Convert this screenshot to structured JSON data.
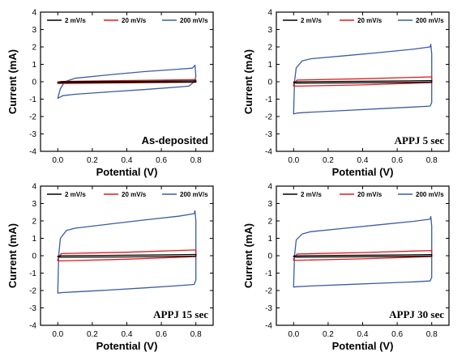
{
  "chart_data": [
    {
      "type": "line",
      "annotation": "As-deposited",
      "annotation_style": "sans",
      "xlabel": "Potential (V)",
      "ylabel": "Current (mA)",
      "xlim": [
        -0.1,
        0.9
      ],
      "ylim": [
        -4,
        4
      ],
      "xticks": [
        "0.0",
        "0.2",
        "0.4",
        "0.6",
        "0.8"
      ],
      "yticks": [
        "-4",
        "-3",
        "-2",
        "-1",
        "0",
        "1",
        "2",
        "3",
        "4"
      ],
      "legend": "top",
      "grid": false,
      "series": [
        {
          "name": "2 mV/s",
          "color": "#000000",
          "upper": [
            [
              0,
              -0.02
            ],
            [
              0.02,
              0.0
            ],
            [
              0.4,
              0.02
            ],
            [
              0.8,
              0.05
            ]
          ],
          "lower": [
            [
              0.8,
              -0.02
            ],
            [
              0.4,
              -0.04
            ],
            [
              0.02,
              -0.05
            ],
            [
              0,
              -0.04
            ]
          ]
        },
        {
          "name": "20 mV/s",
          "color": "#e41a1c",
          "upper": [
            [
              0,
              -0.08
            ],
            [
              0.02,
              0.02
            ],
            [
              0.4,
              0.07
            ],
            [
              0.8,
              0.12
            ]
          ],
          "lower": [
            [
              0.8,
              -0.03
            ],
            [
              0.4,
              -0.06
            ],
            [
              0.02,
              -0.1
            ],
            [
              0,
              -0.1
            ]
          ]
        },
        {
          "name": "200 mV/s",
          "color": "#3b5ba5",
          "upper": [
            [
              0,
              -0.95
            ],
            [
              0.015,
              -0.4
            ],
            [
              0.04,
              0.0
            ],
            [
              0.1,
              0.2
            ],
            [
              0.3,
              0.4
            ],
            [
              0.5,
              0.58
            ],
            [
              0.7,
              0.72
            ],
            [
              0.78,
              0.78
            ],
            [
              0.795,
              0.95
            ]
          ],
          "lower": [
            [
              0.8,
              0.3
            ],
            [
              0.79,
              0.0
            ],
            [
              0.76,
              -0.25
            ],
            [
              0.7,
              -0.3
            ],
            [
              0.5,
              -0.45
            ],
            [
              0.3,
              -0.58
            ],
            [
              0.1,
              -0.72
            ],
            [
              0.03,
              -0.8
            ],
            [
              0,
              -0.95
            ]
          ]
        }
      ]
    },
    {
      "type": "line",
      "annotation": "APPJ 5 sec",
      "annotation_style": "serif",
      "xlabel": "Potential (V)",
      "ylabel": "Current (mA)",
      "xlim": [
        -0.1,
        0.9
      ],
      "ylim": [
        -4,
        4
      ],
      "xticks": [
        "0.0",
        "0.2",
        "0.4",
        "0.6",
        "0.8"
      ],
      "yticks": [
        "-4",
        "-3",
        "-2",
        "-1",
        "0",
        "1",
        "2",
        "3",
        "4"
      ],
      "legend": "top",
      "grid": false,
      "series": [
        {
          "name": "2 mV/s",
          "color": "#000000",
          "upper": [
            [
              0,
              -0.02
            ],
            [
              0.02,
              0.0
            ],
            [
              0.4,
              0.03
            ],
            [
              0.8,
              0.06
            ]
          ],
          "lower": [
            [
              0.8,
              -0.03
            ],
            [
              0.4,
              -0.06
            ],
            [
              0.02,
              -0.08
            ],
            [
              0,
              -0.05
            ]
          ]
        },
        {
          "name": "20 mV/s",
          "color": "#e41a1c",
          "upper": [
            [
              0,
              -0.15
            ],
            [
              0.02,
              0.1
            ],
            [
              0.4,
              0.17
            ],
            [
              0.8,
              0.28
            ]
          ],
          "lower": [
            [
              0.8,
              -0.05
            ],
            [
              0.4,
              -0.18
            ],
            [
              0.02,
              -0.25
            ],
            [
              0,
              -0.25
            ]
          ]
        },
        {
          "name": "200 mV/s",
          "color": "#3b5ba5",
          "upper": [
            [
              0,
              -1.8
            ],
            [
              0.005,
              0.0
            ],
            [
              0.015,
              0.8
            ],
            [
              0.05,
              1.2
            ],
            [
              0.1,
              1.32
            ],
            [
              0.3,
              1.5
            ],
            [
              0.5,
              1.68
            ],
            [
              0.7,
              1.88
            ],
            [
              0.79,
              2.0
            ],
            [
              0.795,
              2.15
            ]
          ],
          "lower": [
            [
              0.8,
              1.6
            ],
            [
              0.8,
              -1.2
            ],
            [
              0.79,
              -1.4
            ],
            [
              0.7,
              -1.45
            ],
            [
              0.5,
              -1.55
            ],
            [
              0.3,
              -1.65
            ],
            [
              0.1,
              -1.75
            ],
            [
              0.02,
              -1.8
            ],
            [
              0,
              -1.85
            ]
          ]
        }
      ]
    },
    {
      "type": "line",
      "annotation": "APPJ 15 sec",
      "annotation_style": "serif",
      "xlabel": "Potential (V)",
      "ylabel": "Current (mA)",
      "xlim": [
        -0.1,
        0.9
      ],
      "ylim": [
        -4,
        4
      ],
      "xticks": [
        "0.0",
        "0.2",
        "0.4",
        "0.6",
        "0.8"
      ],
      "yticks": [
        "-4",
        "-3",
        "-2",
        "-1",
        "0",
        "1",
        "2",
        "3",
        "4"
      ],
      "legend": "top",
      "grid": false,
      "series": [
        {
          "name": "2 mV/s",
          "color": "#000000",
          "upper": [
            [
              0,
              -0.03
            ],
            [
              0.02,
              0.0
            ],
            [
              0.4,
              0.03
            ],
            [
              0.8,
              0.07
            ]
          ],
          "lower": [
            [
              0.8,
              -0.03
            ],
            [
              0.4,
              -0.07
            ],
            [
              0.02,
              -0.09
            ],
            [
              0,
              -0.06
            ]
          ]
        },
        {
          "name": "20 mV/s",
          "color": "#e41a1c",
          "upper": [
            [
              0,
              -0.2
            ],
            [
              0.02,
              0.12
            ],
            [
              0.4,
              0.2
            ],
            [
              0.8,
              0.33
            ]
          ],
          "lower": [
            [
              0.8,
              -0.05
            ],
            [
              0.4,
              -0.2
            ],
            [
              0.02,
              -0.3
            ],
            [
              0,
              -0.3
            ]
          ]
        },
        {
          "name": "200 mV/s",
          "color": "#3b5ba5",
          "upper": [
            [
              0,
              -2.1
            ],
            [
              0.005,
              0.0
            ],
            [
              0.015,
              1.0
            ],
            [
              0.05,
              1.45
            ],
            [
              0.1,
              1.58
            ],
            [
              0.3,
              1.82
            ],
            [
              0.5,
              2.05
            ],
            [
              0.7,
              2.27
            ],
            [
              0.79,
              2.42
            ],
            [
              0.795,
              2.58
            ]
          ],
          "lower": [
            [
              0.8,
              2.0
            ],
            [
              0.8,
              -1.4
            ],
            [
              0.79,
              -1.65
            ],
            [
              0.7,
              -1.72
            ],
            [
              0.5,
              -1.85
            ],
            [
              0.3,
              -1.97
            ],
            [
              0.1,
              -2.08
            ],
            [
              0.02,
              -2.12
            ],
            [
              0,
              -2.15
            ]
          ]
        }
      ]
    },
    {
      "type": "line",
      "annotation": "APPJ 30 sec",
      "annotation_style": "serif",
      "xlabel": "Potential (V)",
      "ylabel": "Current (mA)",
      "xlim": [
        -0.1,
        0.9
      ],
      "ylim": [
        -4,
        4
      ],
      "xticks": [
        "0.0",
        "0.2",
        "0.4",
        "0.6",
        "0.8"
      ],
      "yticks": [
        "-4",
        "-3",
        "-2",
        "-1",
        "0",
        "1",
        "2",
        "3",
        "4"
      ],
      "legend": "top",
      "grid": false,
      "series": [
        {
          "name": "2 mV/s",
          "color": "#000000",
          "upper": [
            [
              0,
              -0.02
            ],
            [
              0.02,
              0.0
            ],
            [
              0.4,
              0.03
            ],
            [
              0.8,
              0.06
            ]
          ],
          "lower": [
            [
              0.8,
              -0.03
            ],
            [
              0.4,
              -0.06
            ],
            [
              0.02,
              -0.08
            ],
            [
              0,
              -0.05
            ]
          ]
        },
        {
          "name": "20 mV/s",
          "color": "#e41a1c",
          "upper": [
            [
              0,
              -0.18
            ],
            [
              0.02,
              0.1
            ],
            [
              0.4,
              0.18
            ],
            [
              0.8,
              0.3
            ]
          ],
          "lower": [
            [
              0.8,
              -0.05
            ],
            [
              0.4,
              -0.18
            ],
            [
              0.02,
              -0.26
            ],
            [
              0,
              -0.26
            ]
          ]
        },
        {
          "name": "200 mV/s",
          "color": "#3b5ba5",
          "upper": [
            [
              0,
              -1.75
            ],
            [
              0.005,
              0.0
            ],
            [
              0.015,
              0.9
            ],
            [
              0.05,
              1.25
            ],
            [
              0.1,
              1.38
            ],
            [
              0.3,
              1.58
            ],
            [
              0.5,
              1.78
            ],
            [
              0.7,
              1.98
            ],
            [
              0.79,
              2.1
            ],
            [
              0.795,
              2.25
            ]
          ],
          "lower": [
            [
              0.8,
              1.7
            ],
            [
              0.8,
              -1.25
            ],
            [
              0.79,
              -1.45
            ],
            [
              0.7,
              -1.5
            ],
            [
              0.5,
              -1.58
            ],
            [
              0.3,
              -1.66
            ],
            [
              0.1,
              -1.74
            ],
            [
              0.02,
              -1.78
            ],
            [
              0,
              -1.8
            ]
          ]
        }
      ]
    }
  ]
}
